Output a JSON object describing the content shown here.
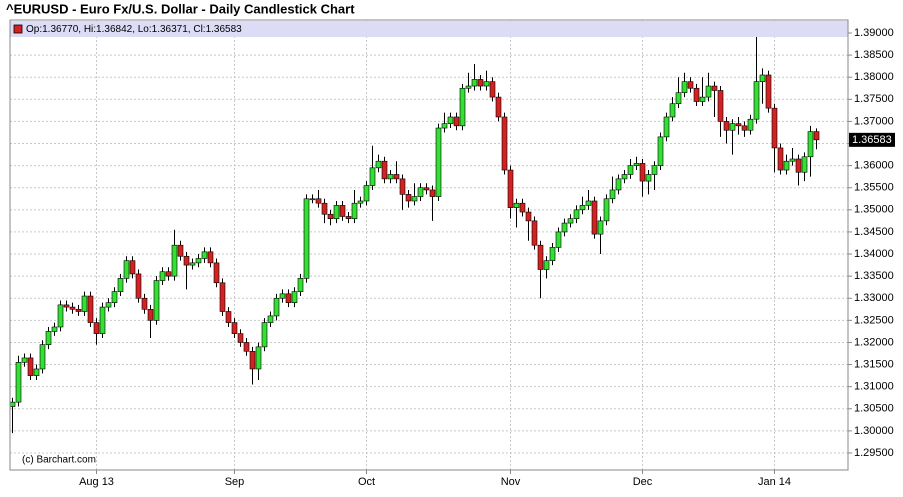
{
  "chart_data": {
    "type": "candlestick",
    "title": "^EURUSD - Euro Fx/U.S. Dollar - Daily Candlestick Chart",
    "legend": "Op:1.36770, Hi:1.36842, Lo:1.36371, Cl:1.36583",
    "last_label": "1.36583",
    "credit": "(c) Barchart.com",
    "up_color": "#33e033",
    "down_color": "#d42222",
    "grid": true,
    "categories": [
      null,
      null,
      null,
      null,
      null,
      null,
      null,
      null,
      null,
      null,
      null,
      null,
      null,
      null,
      "Aug 13",
      null,
      null,
      null,
      null,
      null,
      null,
      null,
      null,
      null,
      null,
      null,
      null,
      null,
      null,
      null,
      null,
      null,
      null,
      null,
      null,
      null,
      null,
      "Sep",
      null,
      null,
      null,
      null,
      null,
      null,
      null,
      null,
      null,
      null,
      null,
      null,
      null,
      null,
      null,
      null,
      null,
      null,
      null,
      null,
      null,
      "Oct",
      null,
      null,
      null,
      null,
      null,
      null,
      null,
      null,
      null,
      null,
      null,
      null,
      null,
      null,
      null,
      null,
      null,
      null,
      null,
      null,
      null,
      null,
      null,
      "Nov",
      null,
      null,
      null,
      null,
      null,
      null,
      null,
      null,
      null,
      null,
      null,
      null,
      null,
      null,
      null,
      null,
      null,
      null,
      null,
      null,
      null,
      "Dec",
      null,
      null,
      null,
      null,
      null,
      null,
      null,
      null,
      null,
      null,
      null,
      null,
      null,
      null,
      null,
      null,
      null,
      null,
      null,
      null,
      null,
      "Jan 14",
      null,
      null,
      null,
      null,
      null,
      null,
      null
    ],
    "open": [
      1.3055,
      1.3065,
      1.3155,
      1.3165,
      1.3125,
      1.314,
      1.3195,
      1.3225,
      1.3235,
      1.3285,
      1.328,
      1.3275,
      1.327,
      1.3305,
      1.3245,
      1.322,
      1.328,
      1.329,
      1.3315,
      1.3345,
      1.3385,
      1.3355,
      1.33,
      1.3275,
      1.325,
      1.334,
      1.336,
      1.335,
      1.342,
      1.3395,
      1.3375,
      1.338,
      1.339,
      1.3405,
      1.338,
      1.3335,
      1.327,
      1.3245,
      1.322,
      1.32,
      1.318,
      1.314,
      1.319,
      1.3245,
      1.326,
      1.33,
      1.331,
      1.329,
      1.3315,
      1.3345,
      1.3525,
      1.3525,
      1.3515,
      1.349,
      1.348,
      1.351,
      1.3485,
      1.348,
      1.3515,
      1.352,
      1.3555,
      1.3595,
      1.361,
      1.357,
      1.358,
      1.357,
      1.3535,
      1.352,
      1.353,
      1.355,
      1.3545,
      1.353,
      1.3685,
      1.3695,
      1.371,
      1.369,
      1.3775,
      1.378,
      1.3795,
      1.378,
      1.379,
      1.3755,
      1.371,
      1.359,
      1.3505,
      1.3515,
      1.3495,
      1.3475,
      1.342,
      1.3365,
      1.3385,
      1.3415,
      1.345,
      1.347,
      1.348,
      1.35,
      1.351,
      1.352,
      1.3445,
      1.3475,
      1.3525,
      1.3545,
      1.357,
      1.358,
      1.36,
      1.3605,
      1.3565,
      1.358,
      1.36,
      1.3665,
      1.371,
      1.374,
      1.3765,
      1.379,
      1.3775,
      1.3745,
      1.3755,
      1.378,
      1.377,
      1.37,
      1.368,
      1.3695,
      1.369,
      1.368,
      1.3705,
      1.379,
      1.3805,
      1.373,
      1.364,
      1.359,
      1.361,
      1.3615,
      1.3585,
      1.362,
      1.3677
    ],
    "high": [
      1.3075,
      1.317,
      1.3175,
      1.3175,
      1.315,
      1.3205,
      1.3235,
      1.3245,
      1.3295,
      1.3295,
      1.329,
      1.3285,
      1.3315,
      1.3315,
      1.3255,
      1.329,
      1.33,
      1.3325,
      1.3355,
      1.3395,
      1.3395,
      1.3365,
      1.331,
      1.3285,
      1.335,
      1.337,
      1.337,
      1.3455,
      1.343,
      1.3405,
      1.339,
      1.34,
      1.3415,
      1.3415,
      1.339,
      1.3345,
      1.328,
      1.3255,
      1.323,
      1.321,
      1.319,
      1.32,
      1.3255,
      1.327,
      1.331,
      1.332,
      1.332,
      1.3325,
      1.3355,
      1.3535,
      1.3535,
      1.3545,
      1.3525,
      1.35,
      1.352,
      1.352,
      1.3495,
      1.3545,
      1.353,
      1.3565,
      1.3645,
      1.3625,
      1.362,
      1.359,
      1.361,
      1.358,
      1.3545,
      1.356,
      1.356,
      1.356,
      1.3555,
      1.3695,
      1.372,
      1.372,
      1.372,
      1.3785,
      1.381,
      1.383,
      1.3805,
      1.3815,
      1.38,
      1.3765,
      1.372,
      1.36,
      1.3525,
      1.3525,
      1.3505,
      1.3485,
      1.343,
      1.3395,
      1.3425,
      1.346,
      1.348,
      1.349,
      1.351,
      1.353,
      1.3545,
      1.353,
      1.3485,
      1.3535,
      1.3575,
      1.358,
      1.359,
      1.3615,
      1.362,
      1.3615,
      1.359,
      1.361,
      1.3675,
      1.372,
      1.3755,
      1.38,
      1.381,
      1.38,
      1.3785,
      1.38,
      1.381,
      1.379,
      1.378,
      1.371,
      1.3705,
      1.371,
      1.37,
      1.3715,
      1.3893,
      1.382,
      1.3815,
      1.374,
      1.365,
      1.3625,
      1.364,
      1.3625,
      1.363,
      1.369,
      1.36842
    ],
    "low": [
      1.2995,
      1.3055,
      1.3145,
      1.3115,
      1.3115,
      1.313,
      1.3185,
      1.3215,
      1.3225,
      1.327,
      1.3265,
      1.326,
      1.326,
      1.3235,
      1.3195,
      1.321,
      1.327,
      1.328,
      1.3305,
      1.3335,
      1.3345,
      1.329,
      1.3265,
      1.321,
      1.324,
      1.333,
      1.334,
      1.334,
      1.3385,
      1.332,
      1.3365,
      1.337,
      1.338,
      1.337,
      1.3325,
      1.326,
      1.3235,
      1.321,
      1.319,
      1.317,
      1.3105,
      1.3115,
      1.318,
      1.3235,
      1.325,
      1.329,
      1.328,
      1.328,
      1.3305,
      1.3335,
      1.3515,
      1.3505,
      1.347,
      1.3465,
      1.347,
      1.3475,
      1.347,
      1.347,
      1.3505,
      1.351,
      1.3545,
      1.3585,
      1.356,
      1.356,
      1.356,
      1.35,
      1.3505,
      1.351,
      1.352,
      1.3535,
      1.3475,
      1.352,
      1.3675,
      1.3685,
      1.368,
      1.368,
      1.3765,
      1.377,
      1.377,
      1.377,
      1.3745,
      1.37,
      1.358,
      1.348,
      1.346,
      1.3485,
      1.343,
      1.341,
      1.33,
      1.3345,
      1.3375,
      1.3405,
      1.344,
      1.346,
      1.347,
      1.349,
      1.35,
      1.3435,
      1.34,
      1.3465,
      1.3515,
      1.3535,
      1.356,
      1.357,
      1.359,
      1.353,
      1.3535,
      1.3545,
      1.359,
      1.3655,
      1.37,
      1.373,
      1.3755,
      1.3765,
      1.3735,
      1.3735,
      1.3745,
      1.371,
      1.3665,
      1.365,
      1.3625,
      1.367,
      1.3665,
      1.367,
      1.3695,
      1.374,
      1.372,
      1.3585,
      1.358,
      1.358,
      1.36,
      1.3555,
      1.3565,
      1.3575,
      1.36371
    ],
    "close": [
      1.3065,
      1.3155,
      1.3165,
      1.3125,
      1.314,
      1.3195,
      1.3225,
      1.3235,
      1.3285,
      1.328,
      1.3275,
      1.327,
      1.3305,
      1.3245,
      1.322,
      1.328,
      1.329,
      1.3315,
      1.3345,
      1.3385,
      1.3355,
      1.33,
      1.3275,
      1.325,
      1.334,
      1.336,
      1.335,
      1.342,
      1.3395,
      1.3375,
      1.338,
      1.339,
      1.3405,
      1.338,
      1.3335,
      1.327,
      1.3245,
      1.322,
      1.32,
      1.318,
      1.314,
      1.319,
      1.3245,
      1.326,
      1.33,
      1.331,
      1.329,
      1.3315,
      1.3345,
      1.3525,
      1.3525,
      1.3515,
      1.349,
      1.348,
      1.351,
      1.3485,
      1.348,
      1.3515,
      1.352,
      1.3555,
      1.3595,
      1.361,
      1.357,
      1.358,
      1.357,
      1.3535,
      1.352,
      1.353,
      1.355,
      1.3545,
      1.353,
      1.3685,
      1.3695,
      1.371,
      1.369,
      1.3775,
      1.378,
      1.3795,
      1.378,
      1.379,
      1.3755,
      1.371,
      1.359,
      1.3505,
      1.3515,
      1.3495,
      1.3475,
      1.342,
      1.3365,
      1.3385,
      1.3415,
      1.345,
      1.347,
      1.348,
      1.35,
      1.351,
      1.352,
      1.3445,
      1.3475,
      1.3525,
      1.3545,
      1.357,
      1.358,
      1.36,
      1.3605,
      1.3565,
      1.358,
      1.36,
      1.3665,
      1.371,
      1.374,
      1.3765,
      1.379,
      1.3775,
      1.3745,
      1.3755,
      1.378,
      1.377,
      1.37,
      1.368,
      1.3695,
      1.369,
      1.368,
      1.3705,
      1.379,
      1.3805,
      1.373,
      1.364,
      1.359,
      1.361,
      1.3615,
      1.3585,
      1.362,
      1.3677,
      1.36583
    ],
    "ylim": [
      1.29115,
      1.39294
    ],
    "yticks": [
      {
        "value": 1.295,
        "label": "1.29500"
      },
      {
        "value": 1.3,
        "label": "1.30000"
      },
      {
        "value": 1.305,
        "label": "1.30500"
      },
      {
        "value": 1.31,
        "label": "1.31000"
      },
      {
        "value": 1.315,
        "label": "1.31500"
      },
      {
        "value": 1.32,
        "label": "1.32000"
      },
      {
        "value": 1.325,
        "label": "1.32500"
      },
      {
        "value": 1.33,
        "label": "1.33000"
      },
      {
        "value": 1.335,
        "label": "1.33500"
      },
      {
        "value": 1.34,
        "label": "1.34000"
      },
      {
        "value": 1.345,
        "label": "1.34500"
      },
      {
        "value": 1.35,
        "label": "1.35000"
      },
      {
        "value": 1.355,
        "label": "1.35500"
      },
      {
        "value": 1.36,
        "label": "1.36000"
      },
      {
        "value": 1.365,
        "label": "1.36500"
      },
      {
        "value": 1.37,
        "label": "1.37000"
      },
      {
        "value": 1.375,
        "label": "1.37500"
      },
      {
        "value": 1.38,
        "label": "1.38000"
      },
      {
        "value": 1.385,
        "label": "1.38500"
      },
      {
        "value": 1.39,
        "label": "1.39000"
      }
    ]
  }
}
